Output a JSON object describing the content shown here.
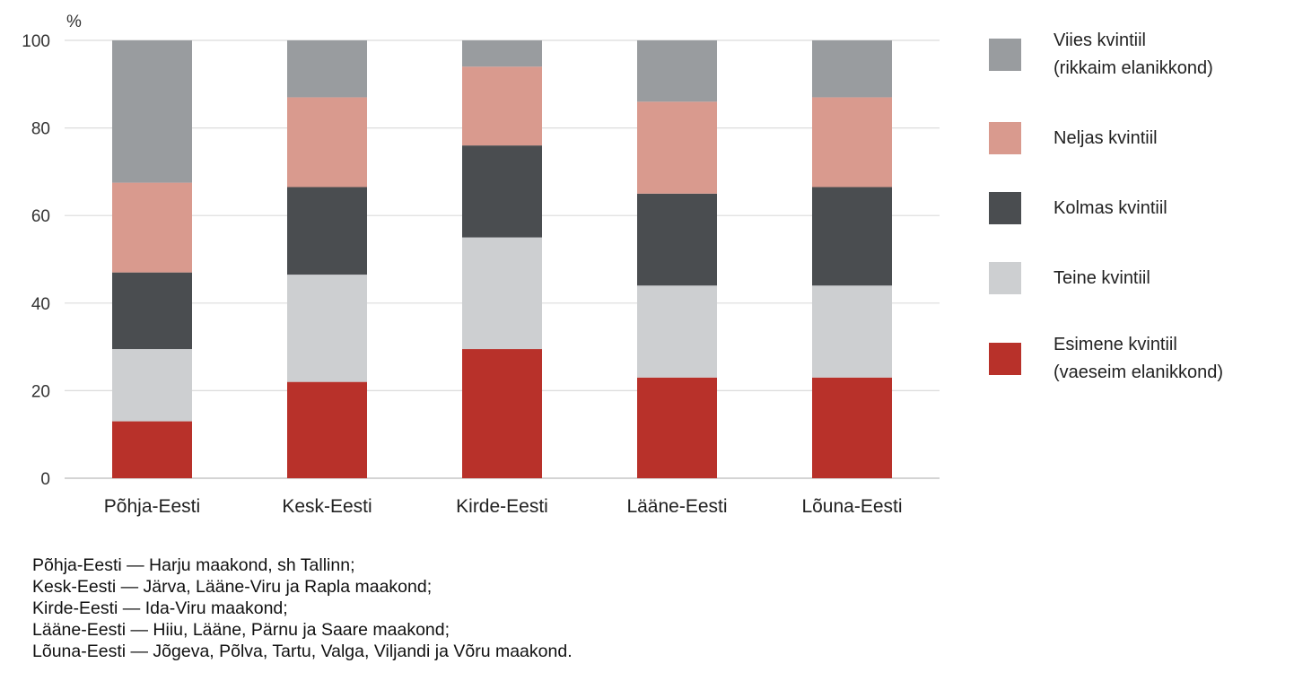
{
  "chart_data": {
    "type": "bar",
    "stacked": true,
    "unit_label": "%",
    "ylim": [
      0,
      100
    ],
    "yticks": [
      0,
      20,
      40,
      60,
      80,
      100
    ],
    "grid": true,
    "legend_position": "right",
    "categories": [
      "Põhja-Eesti",
      "Kesk-Eesti",
      "Kirde-Eesti",
      "Lääne-Eesti",
      "Lõuna-Eesti"
    ],
    "series": [
      {
        "name": "Esimene kvintiil\n(vaeseim elanikkond)",
        "color": "#b8312a",
        "values": [
          13,
          22,
          29.5,
          23,
          23
        ]
      },
      {
        "name": "Teine kvintiil",
        "color": "#cdcfd1",
        "values": [
          16.5,
          24.5,
          25.5,
          21,
          21
        ]
      },
      {
        "name": "Kolmas kvintiil",
        "color": "#4a4d50",
        "values": [
          17.5,
          20,
          21,
          21,
          22.5
        ]
      },
      {
        "name": "Neljas kvintiil",
        "color": "#d99a8e",
        "values": [
          20.5,
          20.5,
          18,
          21,
          20.5
        ]
      },
      {
        "name": "Viies kvintiil\n(rikkaim elanikkond)",
        "color": "#999c9f",
        "values": [
          32.5,
          13,
          6,
          14,
          13
        ]
      }
    ]
  },
  "notes": [
    "Põhja-Eesti — Harju maakond, sh Tallinn;",
    "Kesk-Eesti — Järva, Lääne-Viru ja Rapla maakond;",
    "Kirde-Eesti — Ida-Viru maakond;",
    "Lääne-Eesti — Hiiu, Lääne, Pärnu ja Saare maakond;",
    "Lõuna-Eesti — Jõgeva, Põlva, Tartu, Valga, Viljandi ja Võru maakond."
  ]
}
